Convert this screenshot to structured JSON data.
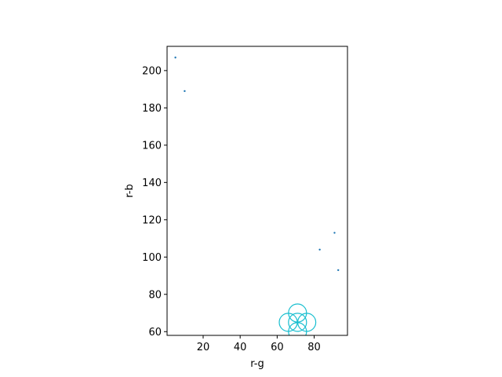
{
  "chart_data": {
    "type": "scatter",
    "xlabel": "r-g",
    "ylabel": "r-b",
    "xlim": [
      0.5,
      98
    ],
    "ylim": [
      58,
      213
    ],
    "xticks": [
      20,
      40,
      60,
      80
    ],
    "yticks": [
      60,
      80,
      100,
      120,
      140,
      160,
      180,
      200
    ],
    "grid": false,
    "series": [
      {
        "marker": "dot",
        "color": "#1f77b4",
        "points": [
          {
            "x": 5,
            "y": 207
          },
          {
            "x": 10,
            "y": 189
          },
          {
            "x": 83,
            "y": 104
          },
          {
            "x": 91,
            "y": 113
          },
          {
            "x": 93,
            "y": 93
          }
        ]
      },
      {
        "marker": "open-circle",
        "color": "#17becf",
        "points": [
          {
            "x": 71,
            "y": 70
          },
          {
            "x": 66,
            "y": 65
          },
          {
            "x": 71,
            "y": 65
          },
          {
            "x": 76,
            "y": 65
          },
          {
            "x": 71,
            "y": 60
          }
        ]
      }
    ]
  }
}
